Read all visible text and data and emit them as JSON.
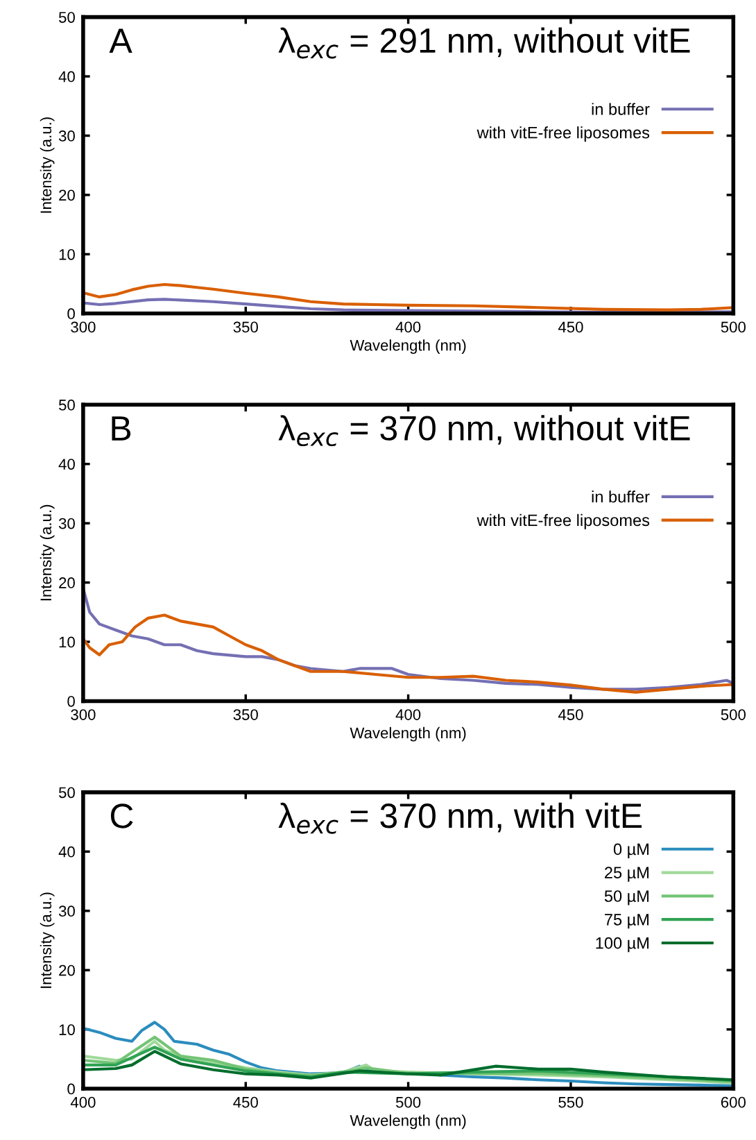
{
  "chart_data": [
    {
      "type": "line",
      "title": "λ$_{exc}$ = 291 nm, without vitE",
      "annotations": [
        "A"
      ],
      "xlabel": "Wavelength (nm)",
      "ylabel": "Intensity (a.u.)",
      "xlim": [
        300,
        500
      ],
      "xticks": [
        300,
        350,
        400,
        450,
        500
      ],
      "ylim": [
        0,
        50
      ],
      "yticks": [
        0,
        10,
        20,
        30,
        40,
        50
      ],
      "grid": false,
      "legend": "right",
      "series": [
        {
          "name": "in buffer",
          "color": "#7570b3",
          "x": [
            300,
            305,
            310,
            320,
            325,
            340,
            350,
            360,
            370,
            380,
            400,
            420,
            440,
            460,
            480,
            500
          ],
          "values": [
            1.8,
            1.5,
            1.7,
            2.3,
            2.4,
            2.0,
            1.6,
            1.2,
            0.8,
            0.6,
            0.5,
            0.4,
            0.3,
            0.2,
            0.2,
            0.3
          ]
        },
        {
          "name": "with vitE-free liposomes",
          "color": "#d95f02",
          "x": [
            300,
            305,
            310,
            315,
            320,
            325,
            330,
            335,
            340,
            350,
            360,
            370,
            380,
            390,
            400,
            420,
            440,
            460,
            480,
            490,
            500
          ],
          "values": [
            3.5,
            2.8,
            3.2,
            4.0,
            4.6,
            4.9,
            4.7,
            4.4,
            4.1,
            3.4,
            2.8,
            2.0,
            1.6,
            1.5,
            1.4,
            1.3,
            1.0,
            0.7,
            0.6,
            0.7,
            1.0
          ]
        }
      ]
    },
    {
      "type": "line",
      "title": "λ$_{exc}$ = 370 nm, without vitE",
      "annotations": [
        "B"
      ],
      "xlabel": "Wavelength (nm)",
      "ylabel": "Intensity (a.u.)",
      "xlim": [
        300,
        500
      ],
      "xticks": [
        300,
        350,
        400,
        450,
        500
      ],
      "ylim": [
        0,
        50
      ],
      "yticks": [
        0,
        10,
        20,
        30,
        40,
        50
      ],
      "grid": false,
      "legend": "right",
      "series": [
        {
          "name": "in buffer",
          "color": "#7570b3",
          "x": [
            300,
            302,
            305,
            310,
            315,
            320,
            325,
            330,
            335,
            340,
            350,
            355,
            360,
            365,
            370,
            380,
            385,
            390,
            395,
            400,
            410,
            420,
            430,
            440,
            450,
            460,
            470,
            480,
            490,
            498,
            500
          ],
          "values": [
            19,
            15,
            13,
            12,
            11,
            10.5,
            9.5,
            9.5,
            8.5,
            8,
            7.5,
            7.5,
            7,
            6,
            5.5,
            5,
            5.5,
            5.5,
            5.5,
            4.5,
            3.8,
            3.5,
            3,
            2.8,
            2.3,
            2,
            2,
            2.3,
            2.8,
            3.5,
            3
          ]
        },
        {
          "name": "with vitE-free liposomes",
          "color": "#d95f02",
          "x": [
            300,
            302,
            305,
            308,
            312,
            316,
            320,
            325,
            330,
            335,
            340,
            345,
            350,
            355,
            360,
            365,
            370,
            380,
            390,
            400,
            410,
            420,
            430,
            440,
            450,
            460,
            470,
            480,
            490,
            500
          ],
          "values": [
            10.5,
            9,
            7.8,
            9.5,
            10,
            12.5,
            14,
            14.5,
            13.5,
            13,
            12.5,
            11,
            9.5,
            8.5,
            7,
            6,
            5,
            5,
            4.5,
            4,
            4,
            4.2,
            3.5,
            3.2,
            2.7,
            2,
            1.5,
            2,
            2.5,
            2.8
          ]
        }
      ]
    },
    {
      "type": "line",
      "title": "λ$_{exc}$ = 370 nm, with vitE",
      "annotations": [
        "C"
      ],
      "xlabel": "Wavelength (nm)",
      "ylabel": "Intensity (a.u.)",
      "xlim": [
        400,
        600
      ],
      "xticks": [
        400,
        450,
        500,
        550,
        600
      ],
      "ylim": [
        0,
        50
      ],
      "yticks": [
        0,
        10,
        20,
        30,
        40,
        50
      ],
      "grid": false,
      "legend": "right",
      "series": [
        {
          "name": "0 µM",
          "color": "#2b8cbe",
          "x": [
            400,
            405,
            410,
            415,
            418,
            422,
            425,
            428,
            435,
            440,
            445,
            450,
            455,
            460,
            470,
            480,
            485,
            490,
            500,
            510,
            520,
            530,
            540,
            550,
            560,
            570,
            580,
            590,
            600
          ],
          "values": [
            10.2,
            9.5,
            8.5,
            8,
            9.8,
            11.2,
            10,
            8,
            7.5,
            6.5,
            5.8,
            4.5,
            3.5,
            3,
            2.5,
            2.7,
            3.8,
            2.8,
            2.8,
            2.3,
            2.0,
            1.8,
            1.5,
            1.3,
            1.0,
            0.8,
            0.7,
            0.6,
            0.5
          ]
        },
        {
          "name": "25 µM",
          "color": "#a1d99b",
          "x": [
            400,
            410,
            415,
            422,
            425,
            430,
            440,
            450,
            460,
            470,
            480,
            487,
            490,
            500,
            520,
            540,
            560,
            580,
            600
          ],
          "values": [
            5.5,
            4.8,
            5,
            8,
            6.5,
            5.5,
            4.5,
            3.5,
            2.8,
            2.3,
            2.8,
            4,
            3,
            2.8,
            2.5,
            2.3,
            2,
            1.5,
            1.0
          ]
        },
        {
          "name": "50 µM",
          "color": "#74c476",
          "x": [
            400,
            410,
            422,
            430,
            440,
            450,
            460,
            470,
            480,
            487,
            500,
            520,
            540,
            560,
            580,
            600
          ],
          "values": [
            4.8,
            4.3,
            8.7,
            5.5,
            4.8,
            3.3,
            2.6,
            2.2,
            2.8,
            3.5,
            2.6,
            2.6,
            2.6,
            2.2,
            1.7,
            1.2
          ]
        },
        {
          "name": "75 µM",
          "color": "#31a354",
          "x": [
            400,
            410,
            422,
            430,
            440,
            450,
            460,
            470,
            480,
            500,
            520,
            540,
            560,
            580,
            600
          ],
          "values": [
            4,
            4,
            7,
            5,
            4,
            3,
            2.5,
            2,
            2.8,
            2.5,
            2.8,
            3,
            2.5,
            2,
            1.4
          ]
        },
        {
          "name": "100 µM",
          "color": "#006d2c",
          "x": [
            400,
            410,
            415,
            422,
            430,
            440,
            450,
            460,
            470,
            485,
            500,
            510,
            527,
            540,
            550,
            560,
            580,
            600
          ],
          "values": [
            3.2,
            3.4,
            4,
            6.3,
            4.2,
            3.2,
            2.5,
            2.3,
            1.8,
            3.0,
            2.5,
            2.3,
            3.8,
            3.3,
            3.3,
            2.8,
            2,
            1.5
          ]
        }
      ]
    }
  ]
}
